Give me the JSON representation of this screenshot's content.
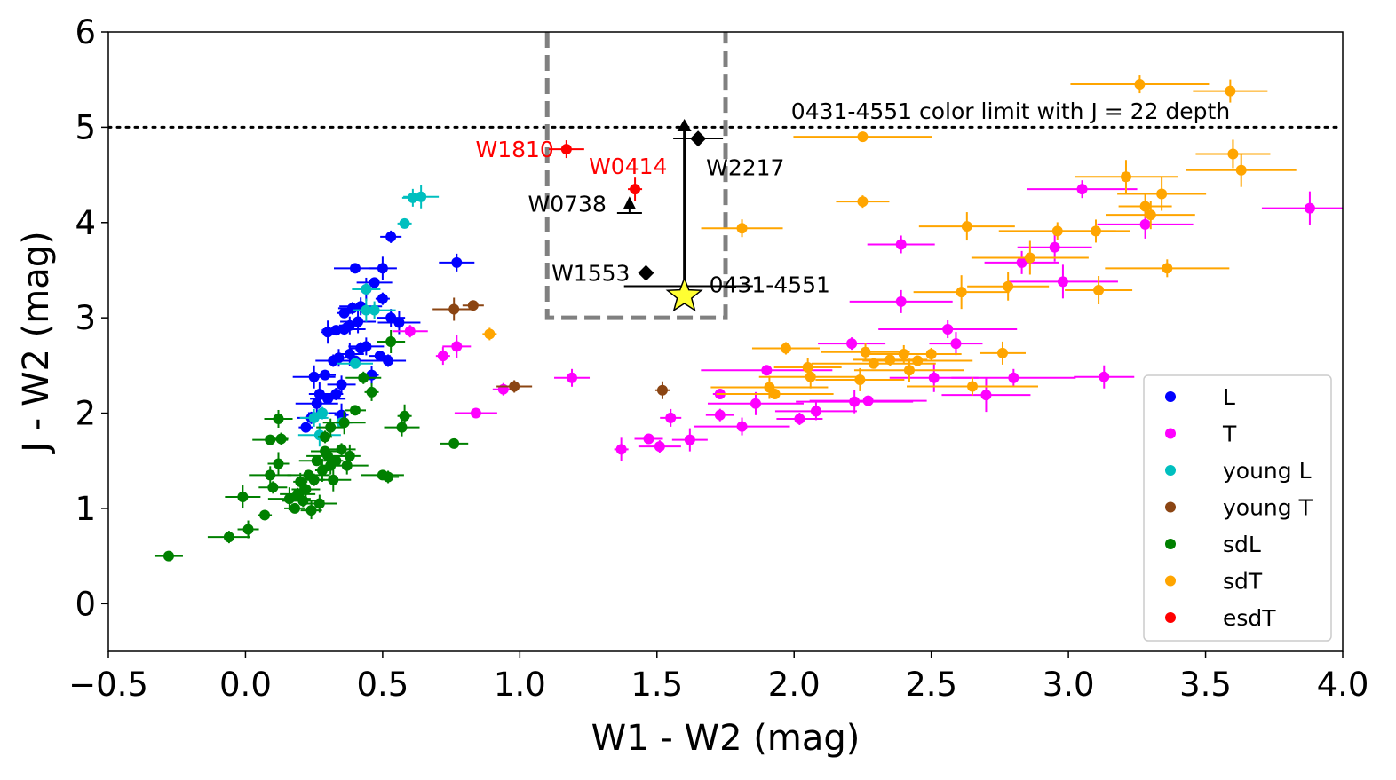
{
  "chart_data": {
    "type": "scatter",
    "title": "",
    "xlabel": "W1 - W2 (mag)",
    "ylabel": "J - W2 (mag)",
    "xlim": [
      -0.5,
      4.0
    ],
    "ylim": [
      -0.5,
      6.0
    ],
    "xticks": [
      "−0.5",
      "0.0",
      "0.5",
      "1.0",
      "1.5",
      "2.0",
      "2.5",
      "3.0",
      "3.5",
      "4.0"
    ],
    "yticks": [
      "0",
      "1",
      "2",
      "3",
      "4",
      "5",
      "6"
    ],
    "grid": false,
    "legend_position": "lower-right",
    "series": [
      {
        "name": "L",
        "color": "#0000ff",
        "points": [
          [
            0.22,
            1.85
          ],
          [
            0.24,
            1.95
          ],
          [
            0.26,
            2.1
          ],
          [
            0.27,
            2.2
          ],
          [
            0.3,
            2.15
          ],
          [
            0.33,
            2.2
          ],
          [
            0.35,
            2.3
          ],
          [
            0.25,
            2.38
          ],
          [
            0.29,
            2.4
          ],
          [
            0.32,
            2.55
          ],
          [
            0.34,
            2.58
          ],
          [
            0.38,
            2.62
          ],
          [
            0.4,
            2.55
          ],
          [
            0.42,
            2.68
          ],
          [
            0.44,
            2.7
          ],
          [
            0.3,
            2.85
          ],
          [
            0.33,
            2.87
          ],
          [
            0.36,
            2.88
          ],
          [
            0.38,
            2.92
          ],
          [
            0.41,
            2.96
          ],
          [
            0.36,
            3.05
          ],
          [
            0.39,
            3.1
          ],
          [
            0.42,
            3.12
          ],
          [
            0.44,
            3.3
          ],
          [
            0.47,
            3.37
          ],
          [
            0.5,
            3.2
          ],
          [
            0.53,
            3.0
          ],
          [
            0.56,
            2.95
          ],
          [
            0.49,
            2.6
          ],
          [
            0.52,
            2.55
          ],
          [
            0.46,
            2.4
          ],
          [
            0.5,
            3.52
          ],
          [
            0.4,
            3.52
          ],
          [
            0.53,
            3.85
          ],
          [
            0.77,
            3.58
          ],
          [
            0.35,
            1.98
          ],
          [
            0.28,
            2.0
          ]
        ]
      },
      {
        "name": "T",
        "color": "#ff00ff",
        "points": [
          [
            0.6,
            2.86
          ],
          [
            0.72,
            2.6
          ],
          [
            0.77,
            2.7
          ],
          [
            0.84,
            2.0
          ],
          [
            0.94,
            2.25
          ],
          [
            1.19,
            2.37
          ],
          [
            1.37,
            1.62
          ],
          [
            1.47,
            1.73
          ],
          [
            1.51,
            1.65
          ],
          [
            1.55,
            1.95
          ],
          [
            1.62,
            1.72
          ],
          [
            1.73,
            2.2
          ],
          [
            1.73,
            1.98
          ],
          [
            1.81,
            1.86
          ],
          [
            1.86,
            2.1
          ],
          [
            1.9,
            2.45
          ],
          [
            2.02,
            1.94
          ],
          [
            2.08,
            2.02
          ],
          [
            2.22,
            2.12
          ],
          [
            2.27,
            2.13
          ],
          [
            2.21,
            2.73
          ],
          [
            2.39,
            3.77
          ],
          [
            2.39,
            3.17
          ],
          [
            2.56,
            2.88
          ],
          [
            2.59,
            2.73
          ],
          [
            2.51,
            2.37
          ],
          [
            2.7,
            2.19
          ],
          [
            2.8,
            2.37
          ],
          [
            2.83,
            3.58
          ],
          [
            2.95,
            3.74
          ],
          [
            2.98,
            3.38
          ],
          [
            3.05,
            4.35
          ],
          [
            3.13,
            2.38
          ],
          [
            3.28,
            3.98
          ],
          [
            3.88,
            4.15
          ]
        ]
      },
      {
        "name": "young L",
        "color": "#00bfbf",
        "points": [
          [
            0.61,
            4.26
          ],
          [
            0.64,
            4.27
          ],
          [
            0.58,
            3.99
          ],
          [
            0.44,
            3.3
          ],
          [
            0.47,
            3.08
          ],
          [
            0.44,
            3.08
          ],
          [
            0.4,
            2.52
          ],
          [
            0.28,
            2.0
          ],
          [
            0.25,
            1.95
          ],
          [
            0.27,
            1.77
          ],
          [
            0.35,
            1.9
          ]
        ]
      },
      {
        "name": "young T",
        "color": "#8b4513",
        "points": [
          [
            0.76,
            3.09
          ],
          [
            0.83,
            3.13
          ],
          [
            0.98,
            2.28
          ],
          [
            1.52,
            2.24
          ]
        ]
      },
      {
        "name": "sdL",
        "color": "#008000",
        "points": [
          [
            -0.28,
            0.5
          ],
          [
            -0.06,
            0.7
          ],
          [
            0.01,
            0.78
          ],
          [
            -0.01,
            1.12
          ],
          [
            0.07,
            0.93
          ],
          [
            0.1,
            1.22
          ],
          [
            0.09,
            1.35
          ],
          [
            0.12,
            1.47
          ],
          [
            0.09,
            1.72
          ],
          [
            0.13,
            1.73
          ],
          [
            0.12,
            1.94
          ],
          [
            0.16,
            1.1
          ],
          [
            0.18,
            1.0
          ],
          [
            0.19,
            1.15
          ],
          [
            0.2,
            1.28
          ],
          [
            0.22,
            1.2
          ],
          [
            0.23,
            1.35
          ],
          [
            0.25,
            1.3
          ],
          [
            0.27,
            1.05
          ],
          [
            0.28,
            1.4
          ],
          [
            0.29,
            1.6
          ],
          [
            0.3,
            1.55
          ],
          [
            0.31,
            1.45
          ],
          [
            0.32,
            1.3
          ],
          [
            0.33,
            1.5
          ],
          [
            0.35,
            1.62
          ],
          [
            0.37,
            1.45
          ],
          [
            0.38,
            1.55
          ],
          [
            0.26,
            1.5
          ],
          [
            0.29,
            1.75
          ],
          [
            0.31,
            1.85
          ],
          [
            0.36,
            1.9
          ],
          [
            0.4,
            2.03
          ],
          [
            0.43,
            2.37
          ],
          [
            0.46,
            2.22
          ],
          [
            0.53,
            2.75
          ],
          [
            0.5,
            1.35
          ],
          [
            0.52,
            1.33
          ],
          [
            0.57,
            1.85
          ],
          [
            0.58,
            1.97
          ],
          [
            0.76,
            1.68
          ],
          [
            0.21,
            1.08
          ],
          [
            0.24,
            0.98
          ]
        ]
      },
      {
        "name": "sdT",
        "color": "#ffa500",
        "points": [
          [
            0.89,
            2.83
          ],
          [
            1.81,
            3.94
          ],
          [
            1.91,
            2.27
          ],
          [
            1.93,
            2.2
          ],
          [
            1.97,
            2.68
          ],
          [
            2.05,
            2.48
          ],
          [
            2.06,
            2.38
          ],
          [
            2.25,
            4.9
          ],
          [
            2.25,
            4.22
          ],
          [
            2.26,
            2.64
          ],
          [
            2.24,
            2.35
          ],
          [
            2.29,
            2.52
          ],
          [
            2.35,
            2.56
          ],
          [
            2.4,
            2.62
          ],
          [
            2.42,
            2.45
          ],
          [
            2.45,
            2.55
          ],
          [
            2.5,
            2.62
          ],
          [
            2.63,
            3.96
          ],
          [
            2.61,
            3.27
          ],
          [
            2.65,
            2.28
          ],
          [
            2.76,
            2.63
          ],
          [
            2.78,
            3.33
          ],
          [
            2.86,
            3.63
          ],
          [
            2.96,
            3.91
          ],
          [
            3.1,
            3.91
          ],
          [
            3.11,
            3.29
          ],
          [
            3.21,
            4.48
          ],
          [
            3.26,
            5.45
          ],
          [
            3.28,
            4.17
          ],
          [
            3.3,
            4.08
          ],
          [
            3.34,
            4.3
          ],
          [
            3.36,
            3.52
          ],
          [
            3.59,
            5.38
          ],
          [
            3.6,
            4.72
          ],
          [
            3.63,
            4.55
          ]
        ]
      },
      {
        "name": "esdT",
        "color": "#ff0000",
        "points": [
          [
            1.17,
            4.77
          ],
          [
            1.42,
            4.35
          ]
        ]
      }
    ],
    "named_objects": [
      {
        "name": "W1810",
        "x": 1.17,
        "y": 4.77,
        "label_color": "#ff0000"
      },
      {
        "name": "W0414",
        "x": 1.42,
        "y": 4.35,
        "label_color": "#ff0000"
      },
      {
        "name": "W0738",
        "x": 1.4,
        "y": 4.2,
        "marker": "lower-limit",
        "label_color": "#000000"
      },
      {
        "name": "W2217",
        "x": 1.65,
        "y": 4.88,
        "marker": "diamond",
        "label_color": "#000000"
      },
      {
        "name": "W1553",
        "x": 1.46,
        "y": 3.47,
        "marker": "diamond",
        "label_color": "#000000"
      },
      {
        "name": "0431-4551",
        "x": 1.6,
        "y": 3.23,
        "y_upper_arrow": 5.05,
        "marker": "star",
        "color": "#ffff33",
        "label_color": "#000000"
      }
    ],
    "selection_box": {
      "x": [
        1.1,
        1.75
      ],
      "y": [
        3.0,
        6.0
      ],
      "color": "#808080",
      "style": "dashed"
    },
    "limit_line": {
      "y": 5.0,
      "style": "dotted",
      "label": "0431-4551 color limit with J = 22 depth"
    }
  }
}
